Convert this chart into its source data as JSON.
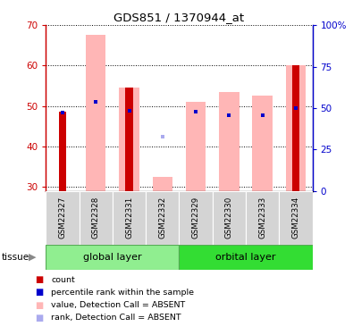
{
  "title": "GDS851 / 1370944_at",
  "samples": [
    "GSM22327",
    "GSM22328",
    "GSM22331",
    "GSM22332",
    "GSM22329",
    "GSM22330",
    "GSM22333",
    "GSM22334"
  ],
  "ylim_left": [
    29,
    70
  ],
  "ylim_right": [
    0,
    100
  ],
  "yticks_left": [
    30,
    40,
    50,
    60,
    70
  ],
  "yticks_right": [
    0,
    25,
    50,
    75,
    100
  ],
  "ytick_labels_right": [
    "0",
    "25",
    "50",
    "75",
    "100%"
  ],
  "bar_bottom": 29,
  "red_values": [
    48.5,
    0,
    54.5,
    0,
    0,
    0,
    0,
    60.0
  ],
  "pink_values": [
    0,
    67.5,
    54.5,
    32.5,
    51.0,
    53.5,
    52.5,
    60.0
  ],
  "blue_values": [
    48.3,
    51.0,
    48.8,
    0,
    48.5,
    47.8,
    47.7,
    49.5
  ],
  "lightblue_values": [
    0,
    0,
    0,
    42.5,
    0,
    0,
    0,
    0
  ],
  "color_red": "#CC0000",
  "color_pink": "#FFB6B6",
  "color_blue": "#0000CC",
  "color_lightblue": "#AAAAEE",
  "color_group1": "#90EE90",
  "color_group2": "#33DD33",
  "group1_label": "global layer",
  "group2_label": "orbital layer",
  "tissue_label": "tissue",
  "legend_items": [
    {
      "label": "count",
      "color": "#CC0000"
    },
    {
      "label": "percentile rank within the sample",
      "color": "#0000CC"
    },
    {
      "label": "value, Detection Call = ABSENT",
      "color": "#FFB6B6"
    },
    {
      "label": "rank, Detection Call = ABSENT",
      "color": "#AAAAEE"
    }
  ]
}
